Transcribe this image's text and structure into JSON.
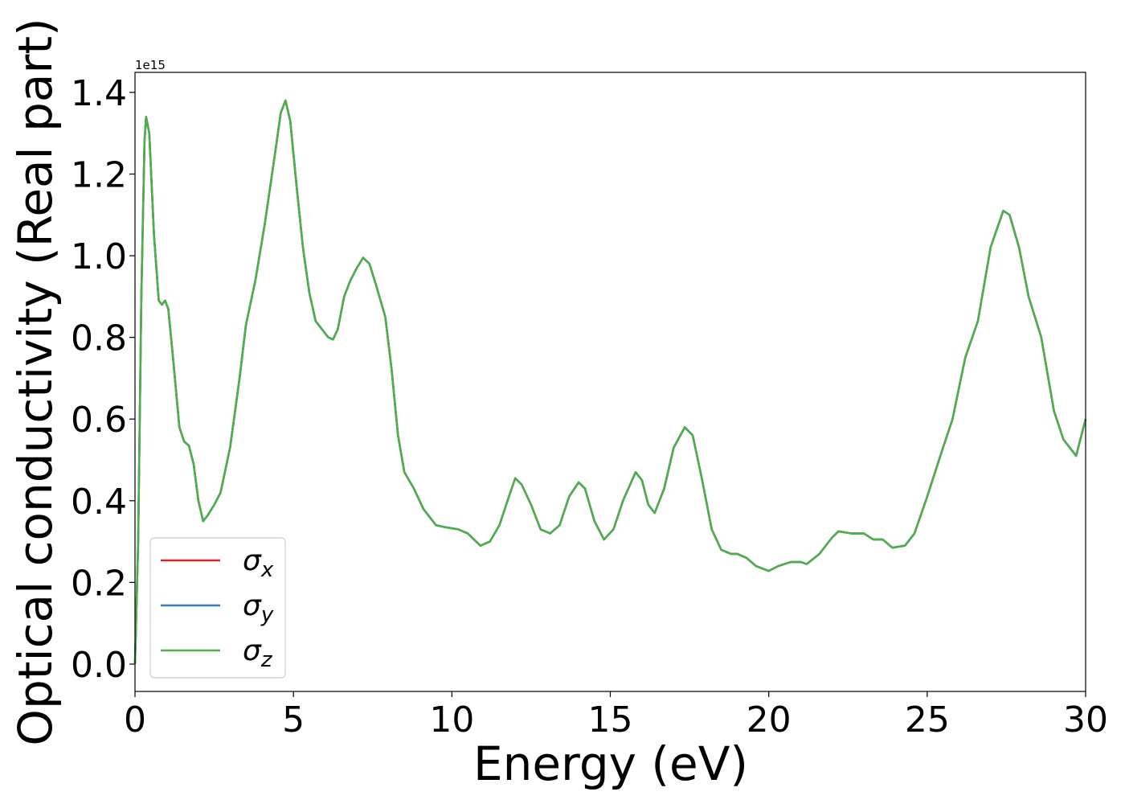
{
  "chart_data": {
    "type": "line",
    "x_label": "Energy (eV)",
    "y_label": "Optical conductivity (Real part)",
    "y_offset_text": "1e15",
    "xlim": [
      0,
      30
    ],
    "xticks": [
      0,
      5,
      10,
      15,
      20,
      25,
      30
    ],
    "ylim": [
      -0.067,
      1.449
    ],
    "yticks": [
      {
        "value": 0,
        "label": "0.0"
      },
      0.2,
      0.4,
      0.6,
      0.8,
      {
        "value": 1,
        "label": "1.0"
      },
      1.2,
      1.4
    ],
    "legend": "lower left",
    "x": [
      0,
      0.1,
      0.2,
      0.3,
      0.35,
      0.45,
      0.6,
      0.75,
      0.85,
      0.95,
      1.05,
      1.2,
      1.4,
      1.55,
      1.7,
      1.85,
      2.0,
      2.15,
      2.3,
      2.5,
      2.7,
      3.0,
      3.3,
      3.5,
      3.8,
      4.1,
      4.4,
      4.6,
      4.75,
      4.9,
      5.1,
      5.3,
      5.5,
      5.7,
      5.9,
      6.1,
      6.25,
      6.4,
      6.6,
      6.8,
      7.0,
      7.2,
      7.4,
      7.6,
      7.9,
      8.1,
      8.3,
      8.5,
      8.8,
      9.1,
      9.5,
      9.8,
      10.2,
      10.5,
      10.9,
      11.2,
      11.5,
      11.8,
      12.0,
      12.2,
      12.5,
      12.8,
      13.1,
      13.4,
      13.7,
      14.0,
      14.2,
      14.5,
      14.8,
      15.1,
      15.4,
      15.8,
      16.0,
      16.2,
      16.4,
      16.7,
      17.0,
      17.35,
      17.6,
      17.9,
      18.2,
      18.5,
      18.8,
      19.0,
      19.3,
      19.6,
      20.0,
      20.3,
      20.7,
      21.0,
      21.2,
      21.6,
      22.0,
      22.2,
      22.6,
      23.0,
      23.3,
      23.6,
      23.9,
      24.3,
      24.6,
      25.0,
      25.5,
      25.8,
      26.2,
      26.6,
      27.0,
      27.4,
      27.6,
      27.9,
      28.2,
      28.6,
      29.0,
      29.3,
      29.7,
      30.0
    ],
    "series": [
      {
        "name": "σx",
        "color": "#d62728",
        "values": [
          0,
          0.3,
          0.9,
          1.28,
          1.34,
          1.3,
          1.05,
          0.89,
          0.88,
          0.89,
          0.87,
          0.75,
          0.58,
          0.545,
          0.535,
          0.49,
          0.4,
          0.35,
          0.365,
          0.39,
          0.42,
          0.53,
          0.7,
          0.83,
          0.94,
          1.08,
          1.24,
          1.35,
          1.38,
          1.33,
          1.17,
          1.02,
          0.91,
          0.84,
          0.82,
          0.8,
          0.795,
          0.82,
          0.9,
          0.94,
          0.97,
          0.995,
          0.98,
          0.93,
          0.85,
          0.72,
          0.56,
          0.47,
          0.43,
          0.38,
          0.34,
          0.335,
          0.33,
          0.32,
          0.29,
          0.3,
          0.34,
          0.41,
          0.455,
          0.44,
          0.39,
          0.33,
          0.32,
          0.34,
          0.41,
          0.445,
          0.43,
          0.35,
          0.305,
          0.33,
          0.4,
          0.47,
          0.45,
          0.39,
          0.37,
          0.43,
          0.53,
          0.58,
          0.56,
          0.45,
          0.33,
          0.28,
          0.27,
          0.27,
          0.26,
          0.24,
          0.228,
          0.24,
          0.25,
          0.25,
          0.245,
          0.27,
          0.31,
          0.325,
          0.32,
          0.32,
          0.305,
          0.305,
          0.285,
          0.29,
          0.32,
          0.41,
          0.53,
          0.6,
          0.75,
          0.84,
          1.02,
          1.11,
          1.1,
          1.02,
          0.9,
          0.8,
          0.62,
          0.55,
          0.51,
          0.6
        ]
      },
      {
        "name": "σy",
        "color": "#377eb8",
        "values": [
          0,
          0.3,
          0.9,
          1.28,
          1.34,
          1.3,
          1.05,
          0.89,
          0.88,
          0.89,
          0.87,
          0.75,
          0.58,
          0.545,
          0.535,
          0.49,
          0.4,
          0.35,
          0.365,
          0.39,
          0.42,
          0.53,
          0.7,
          0.83,
          0.94,
          1.08,
          1.24,
          1.35,
          1.38,
          1.33,
          1.17,
          1.02,
          0.91,
          0.84,
          0.82,
          0.8,
          0.795,
          0.82,
          0.9,
          0.94,
          0.97,
          0.995,
          0.98,
          0.93,
          0.85,
          0.72,
          0.56,
          0.47,
          0.43,
          0.38,
          0.34,
          0.335,
          0.33,
          0.32,
          0.29,
          0.3,
          0.34,
          0.41,
          0.455,
          0.44,
          0.39,
          0.33,
          0.32,
          0.34,
          0.41,
          0.445,
          0.43,
          0.35,
          0.305,
          0.33,
          0.4,
          0.47,
          0.45,
          0.39,
          0.37,
          0.43,
          0.53,
          0.58,
          0.56,
          0.45,
          0.33,
          0.28,
          0.27,
          0.27,
          0.26,
          0.24,
          0.228,
          0.24,
          0.25,
          0.25,
          0.245,
          0.27,
          0.31,
          0.325,
          0.32,
          0.32,
          0.305,
          0.305,
          0.285,
          0.29,
          0.32,
          0.41,
          0.53,
          0.6,
          0.75,
          0.84,
          1.02,
          1.11,
          1.1,
          1.02,
          0.9,
          0.8,
          0.62,
          0.55,
          0.51,
          0.6
        ]
      },
      {
        "name": "σz",
        "color": "#4daf4a",
        "values": [
          0,
          0.3,
          0.9,
          1.28,
          1.34,
          1.3,
          1.05,
          0.89,
          0.88,
          0.89,
          0.87,
          0.75,
          0.58,
          0.545,
          0.535,
          0.49,
          0.4,
          0.35,
          0.365,
          0.39,
          0.42,
          0.53,
          0.7,
          0.83,
          0.94,
          1.08,
          1.24,
          1.35,
          1.38,
          1.33,
          1.17,
          1.02,
          0.91,
          0.84,
          0.82,
          0.8,
          0.795,
          0.82,
          0.9,
          0.94,
          0.97,
          0.995,
          0.98,
          0.93,
          0.85,
          0.72,
          0.56,
          0.47,
          0.43,
          0.38,
          0.34,
          0.335,
          0.33,
          0.32,
          0.29,
          0.3,
          0.34,
          0.41,
          0.455,
          0.44,
          0.39,
          0.33,
          0.32,
          0.34,
          0.41,
          0.445,
          0.43,
          0.35,
          0.305,
          0.33,
          0.4,
          0.47,
          0.45,
          0.39,
          0.37,
          0.43,
          0.53,
          0.58,
          0.56,
          0.45,
          0.33,
          0.28,
          0.27,
          0.27,
          0.26,
          0.24,
          0.228,
          0.24,
          0.25,
          0.25,
          0.245,
          0.27,
          0.31,
          0.325,
          0.32,
          0.32,
          0.305,
          0.305,
          0.285,
          0.29,
          0.32,
          0.41,
          0.53,
          0.6,
          0.75,
          0.84,
          1.02,
          1.11,
          1.1,
          1.02,
          0.9,
          0.8,
          0.62,
          0.55,
          0.51,
          0.6
        ]
      }
    ]
  }
}
